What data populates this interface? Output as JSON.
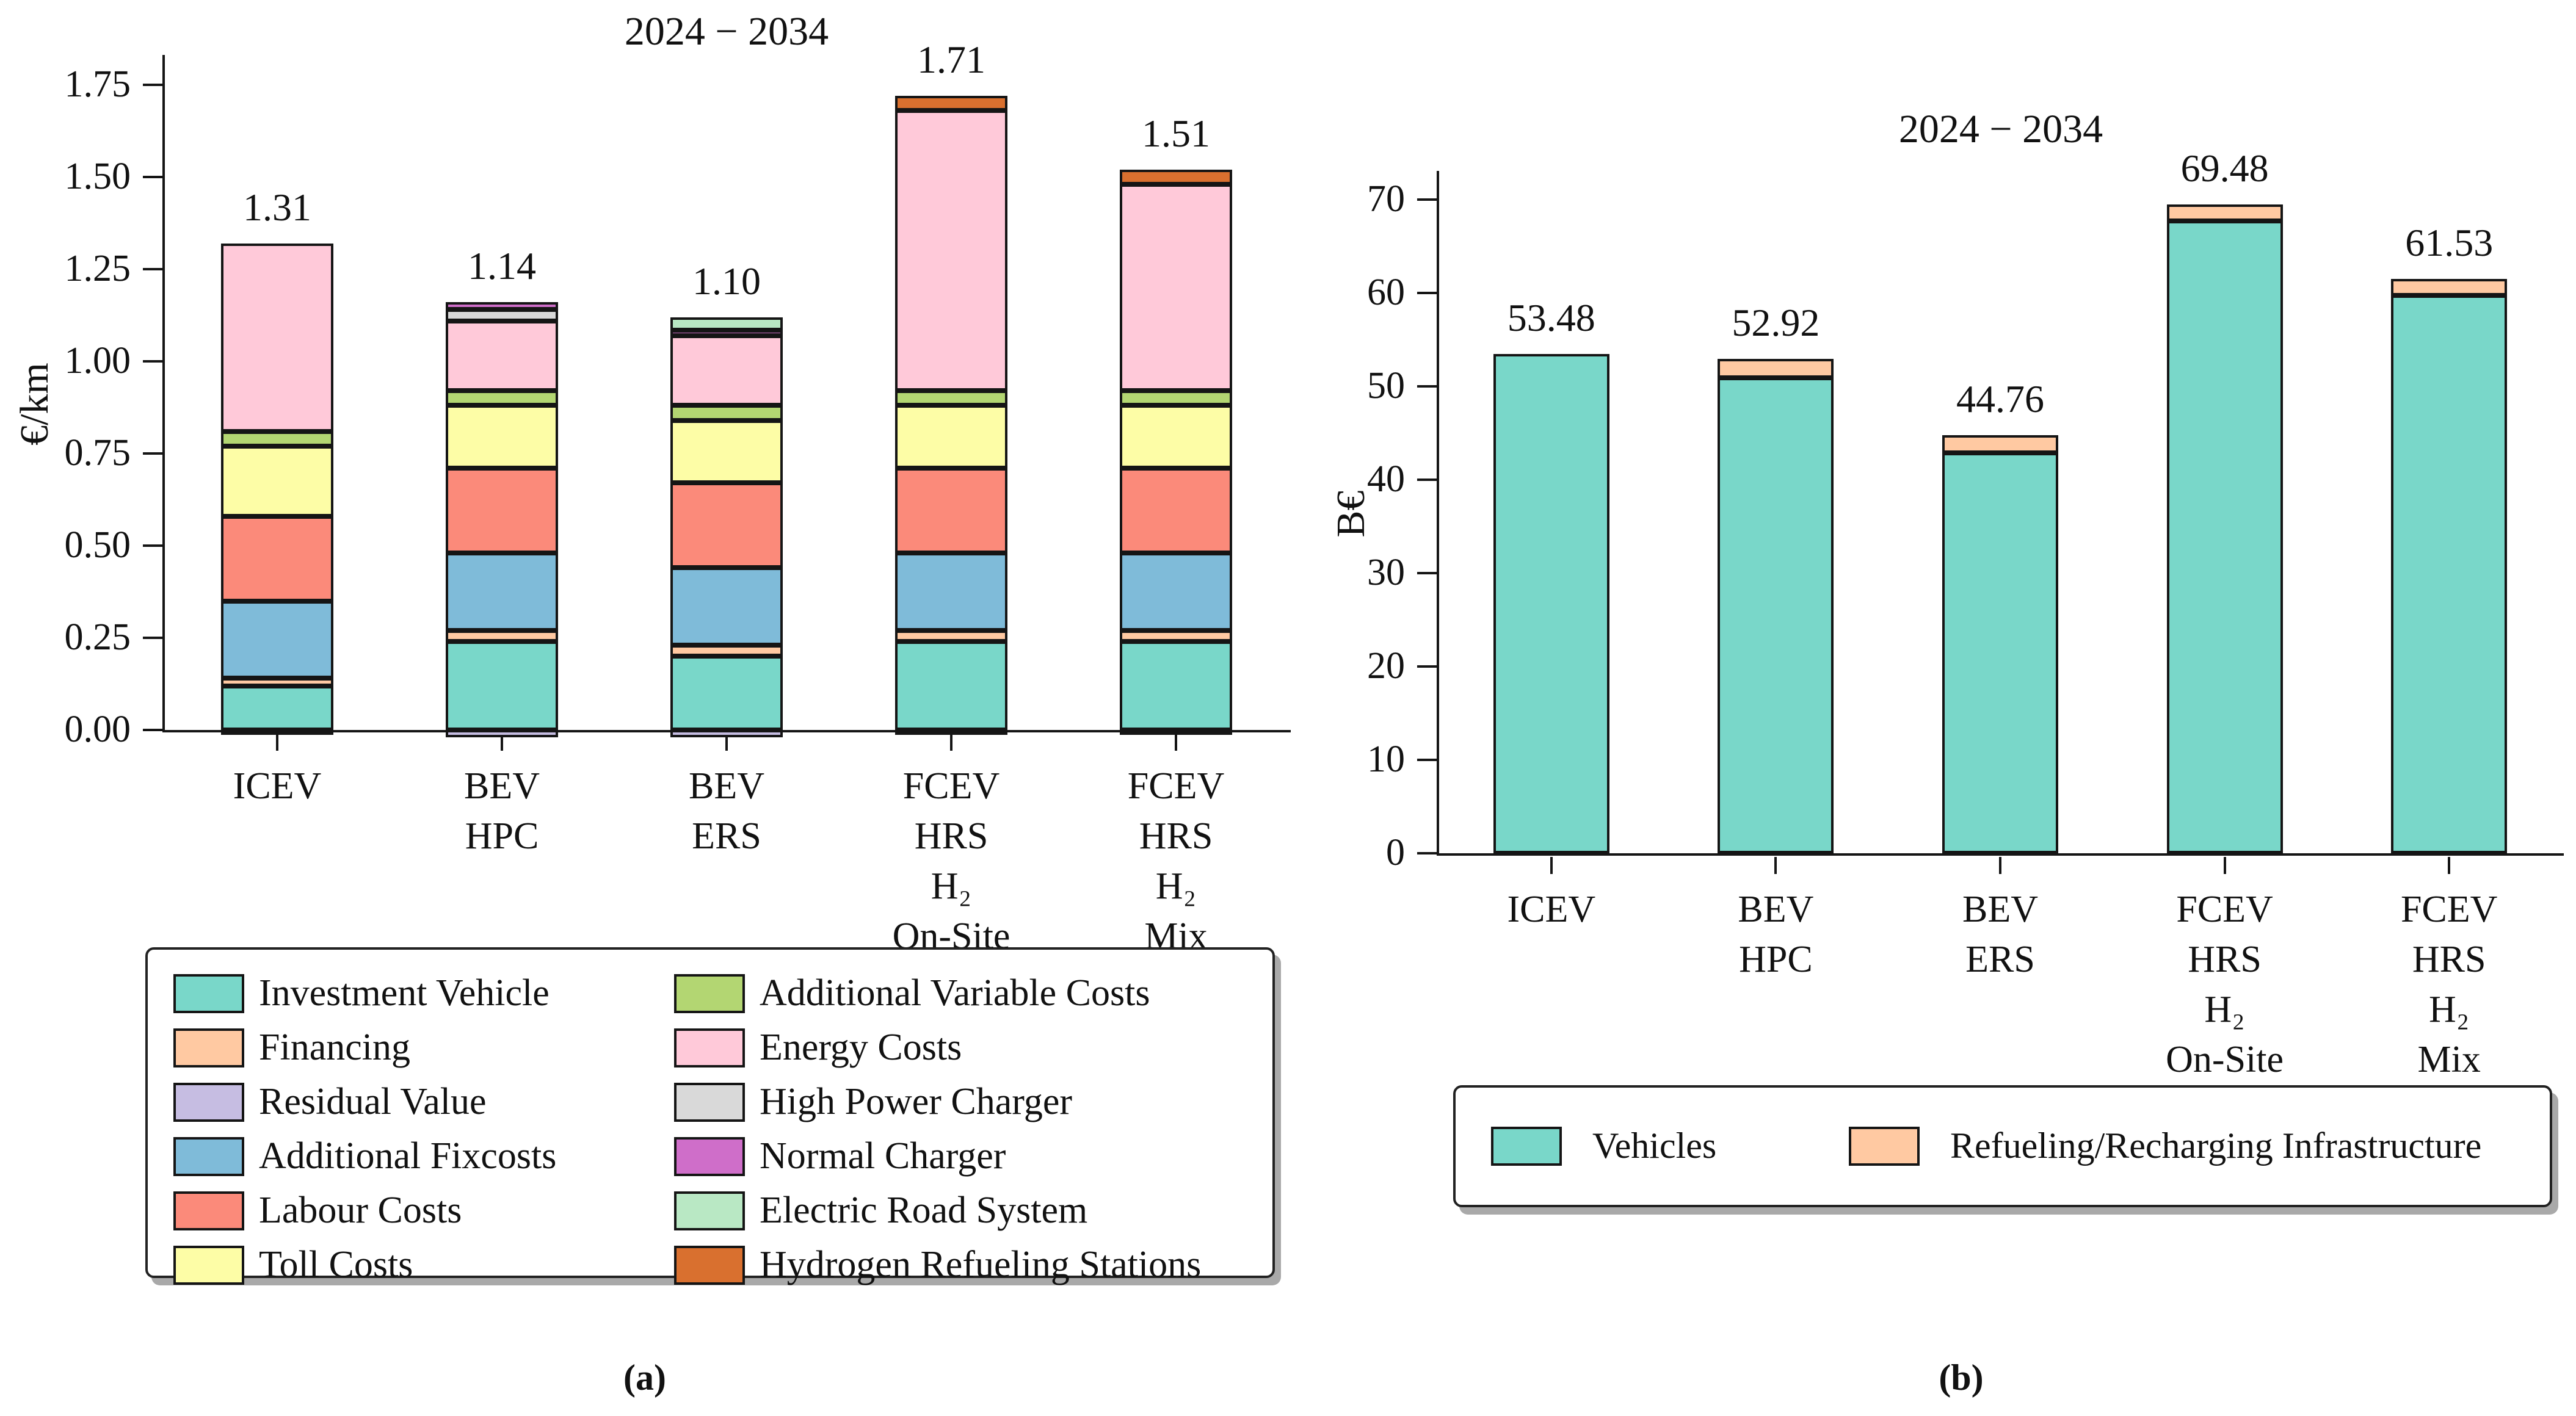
{
  "figure": {
    "background": "#ffffff"
  },
  "captions": {
    "a": "(a)",
    "b": "(b)"
  },
  "chart_data": [
    {
      "id": "a",
      "type": "bar",
      "subtype": "stacked",
      "title": "2024 − 2034",
      "ylabel": "€/km",
      "xlabel": "",
      "ylim": [
        0,
        1.92
      ],
      "grid": false,
      "legend_position": "below",
      "ytick_values": [
        0,
        0.25,
        0.5,
        0.75,
        1.0,
        1.25,
        1.5,
        1.75
      ],
      "ytick_labels": [
        "0.00",
        "0.25",
        "0.50",
        "0.75",
        "1.00",
        "1.25",
        "1.50",
        "1.75"
      ],
      "categories": [
        [
          "ICEV"
        ],
        [
          "BEV",
          "HPC"
        ],
        [
          "BEV",
          "ERS"
        ],
        [
          "FCEV",
          "HRS",
          "H₂",
          "On-Site"
        ],
        [
          "FCEV",
          "HRS",
          "H₂",
          "Mix"
        ]
      ],
      "bar_totals": [
        "1.31",
        "1.14",
        "1.10",
        "1.71",
        "1.51"
      ],
      "series": [
        {
          "name": "Investment Vehicle",
          "color": "#79d7c9",
          "values": [
            0.12,
            0.24,
            0.2,
            0.24,
            0.24
          ]
        },
        {
          "name": "Financing",
          "color": "#ffc9a2",
          "values": [
            0.02,
            0.03,
            0.03,
            0.03,
            0.03
          ]
        },
        {
          "name": "Residual Value",
          "color": "#c6bde2",
          "values": [
            -0.01,
            -0.02,
            -0.02,
            -0.01,
            -0.01
          ]
        },
        {
          "name": "Additional Fixcosts",
          "color": "#7fbbd9",
          "values": [
            0.21,
            0.21,
            0.21,
            0.21,
            0.21
          ]
        },
        {
          "name": "Labour Costs",
          "color": "#fb8a7a",
          "values": [
            0.23,
            0.23,
            0.23,
            0.23,
            0.23
          ]
        },
        {
          "name": "Toll Costs",
          "color": "#fdfda6",
          "values": [
            0.19,
            0.17,
            0.17,
            0.17,
            0.17
          ]
        },
        {
          "name": "Additional Variable Costs",
          "color": "#b3d672",
          "values": [
            0.04,
            0.04,
            0.04,
            0.04,
            0.04
          ]
        },
        {
          "name": "Energy Costs",
          "color": "#ffc9d9",
          "values": [
            0.51,
            0.19,
            0.19,
            0.76,
            0.56
          ]
        },
        {
          "name": "High Power Charger",
          "color": "#d9d9d9",
          "values": [
            0,
            0.03,
            0,
            0,
            0
          ]
        },
        {
          "name": "Normal Charger",
          "color": "#cf6ec9",
          "values": [
            0,
            0.02,
            0.015,
            0,
            0
          ]
        },
        {
          "name": "Electric Road System",
          "color": "#b9e8c4",
          "values": [
            0,
            0,
            0.035,
            0,
            0
          ]
        },
        {
          "name": "Hydrogen Refueling Stations",
          "color": "#d9702f",
          "values": [
            0,
            0,
            0,
            0.04,
            0.04
          ]
        }
      ],
      "legend_columns": [
        [
          "Investment Vehicle",
          "Financing",
          "Residual Value",
          "Additional Fixcosts",
          "Labour Costs",
          "Toll Costs"
        ],
        [
          "Additional Variable Costs",
          "Energy Costs",
          "High Power Charger",
          "Normal Charger",
          "Electric Road System",
          "Hydrogen Refueling Stations"
        ]
      ]
    },
    {
      "id": "b",
      "type": "bar",
      "subtype": "stacked",
      "title": "2024 − 2034",
      "ylabel": "B€",
      "xlabel": "",
      "ylim": [
        0,
        73
      ],
      "grid": false,
      "legend_position": "below",
      "ytick_values": [
        0,
        10,
        20,
        30,
        40,
        50,
        60,
        70
      ],
      "ytick_labels": [
        "0",
        "10",
        "20",
        "30",
        "40",
        "50",
        "60",
        "70"
      ],
      "categories": [
        [
          "ICEV"
        ],
        [
          "BEV",
          "HPC"
        ],
        [
          "BEV",
          "ERS"
        ],
        [
          "FCEV",
          "HRS",
          "H₂",
          "On-Site"
        ],
        [
          "FCEV",
          "HRS",
          "H₂",
          "Mix"
        ]
      ],
      "bar_totals": [
        "53.48",
        "52.92",
        "44.76",
        "69.48",
        "61.53"
      ],
      "series": [
        {
          "name": "Vehicles",
          "color": "#79d7c9",
          "values": [
            53.48,
            50.92,
            42.86,
            67.68,
            59.73
          ]
        },
        {
          "name": "Refueling/Recharging Infrastructure",
          "color": "#ffc9a2",
          "values": [
            0,
            2.0,
            1.9,
            1.8,
            1.8
          ]
        }
      ],
      "legend_columns": [
        [
          "Vehicles"
        ],
        [
          "Refueling/Recharging Infrastructure"
        ]
      ]
    }
  ]
}
